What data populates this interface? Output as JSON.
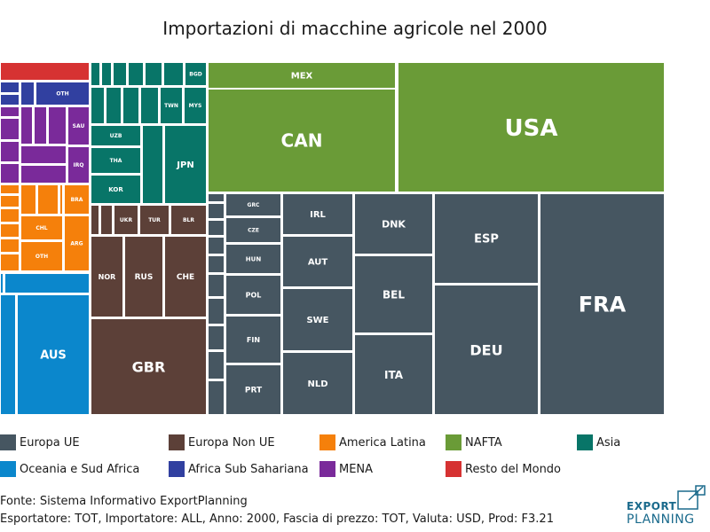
{
  "title": "Importazioni di macchine agricole nel 2000",
  "colors": {
    "europa_ue": "#465661",
    "europa_non_ue": "#5c4038",
    "america_latina": "#f5800b",
    "nafta": "#6a9b37",
    "asia": "#087568",
    "oceania": "#0b87cc",
    "africa_sub": "#3140a0",
    "mena": "#7a2a9a",
    "resto": "#d63232"
  },
  "legend": [
    {
      "label": "Europa UE",
      "color": "#465661"
    },
    {
      "label": "Europa Non UE",
      "color": "#5c4038"
    },
    {
      "label": "America Latina",
      "color": "#f5800b"
    },
    {
      "label": "NAFTA",
      "color": "#6a9b37"
    },
    {
      "label": "Asia",
      "color": "#087568"
    },
    {
      "label": "Oceania e Sud Africa",
      "color": "#0b87cc"
    },
    {
      "label": "Africa Sub Sahariana",
      "color": "#3140a0"
    },
    {
      "label": "MENA",
      "color": "#7a2a9a"
    },
    {
      "label": "Resto del Mondo",
      "color": "#d63232"
    }
  ],
  "footer": {
    "source": "Fonte: Sistema Informativo ExportPlanning",
    "params": "Esportatore: TOT, Importatore: ALL, Anno: 2000, Fascia di prezzo: TOT, Valuta: USD, Prod: F3.21"
  },
  "logo": {
    "line1": "EXPORT",
    "line2": "PLANNING"
  },
  "chart_data": {
    "type": "treemap",
    "title": "Importazioni di macchine agricole nel 2000",
    "groups": [
      "Europa UE",
      "Europa Non UE",
      "America Latina",
      "NAFTA",
      "Asia",
      "Oceania e Sud Africa",
      "Africa Sub Sahariana",
      "MENA",
      "Resto del Mondo"
    ],
    "labeled_tiles": [
      {
        "label": "USA",
        "group": "NAFTA"
      },
      {
        "label": "CAN",
        "group": "NAFTA"
      },
      {
        "label": "MEX",
        "group": "NAFTA"
      },
      {
        "label": "FRA",
        "group": "Europa UE"
      },
      {
        "label": "DEU",
        "group": "Europa UE"
      },
      {
        "label": "ESP",
        "group": "Europa UE"
      },
      {
        "label": "ITA",
        "group": "Europa UE"
      },
      {
        "label": "BEL",
        "group": "Europa UE"
      },
      {
        "label": "DNK",
        "group": "Europa UE"
      },
      {
        "label": "NLD",
        "group": "Europa UE"
      },
      {
        "label": "SWE",
        "group": "Europa UE"
      },
      {
        "label": "AUT",
        "group": "Europa UE"
      },
      {
        "label": "IRL",
        "group": "Europa UE"
      },
      {
        "label": "PRT",
        "group": "Europa UE"
      },
      {
        "label": "FIN",
        "group": "Europa UE"
      },
      {
        "label": "POL",
        "group": "Europa UE"
      },
      {
        "label": "HUN",
        "group": "Europa UE"
      },
      {
        "label": "CZE",
        "group": "Europa UE"
      },
      {
        "label": "GRC",
        "group": "Europa UE"
      },
      {
        "label": "GBR",
        "group": "Europa Non UE"
      },
      {
        "label": "NOR",
        "group": "Europa Non UE"
      },
      {
        "label": "RUS",
        "group": "Europa Non UE"
      },
      {
        "label": "CHE",
        "group": "Europa Non UE"
      },
      {
        "label": "UKR",
        "group": "Europa Non UE"
      },
      {
        "label": "TUR",
        "group": "Europa Non UE"
      },
      {
        "label": "BLR",
        "group": "Europa Non UE"
      },
      {
        "label": "JPN",
        "group": "Asia"
      },
      {
        "label": "KOR",
        "group": "Asia"
      },
      {
        "label": "THA",
        "group": "Asia"
      },
      {
        "label": "UZB",
        "group": "Asia"
      },
      {
        "label": "TWN",
        "group": "Asia"
      },
      {
        "label": "MYS",
        "group": "Asia"
      },
      {
        "label": "BGD",
        "group": "Asia"
      },
      {
        "label": "AUS",
        "group": "Oceania e Sud Africa"
      },
      {
        "label": "OTH",
        "group": "Africa Sub Sahariana"
      },
      {
        "label": "SAU",
        "group": "MENA"
      },
      {
        "label": "IRQ",
        "group": "MENA"
      },
      {
        "label": "BRA",
        "group": "America Latina"
      },
      {
        "label": "CHL",
        "group": "America Latina"
      },
      {
        "label": "ARG",
        "group": "America Latina"
      },
      {
        "label": "OTH",
        "group": "America Latina"
      }
    ]
  }
}
